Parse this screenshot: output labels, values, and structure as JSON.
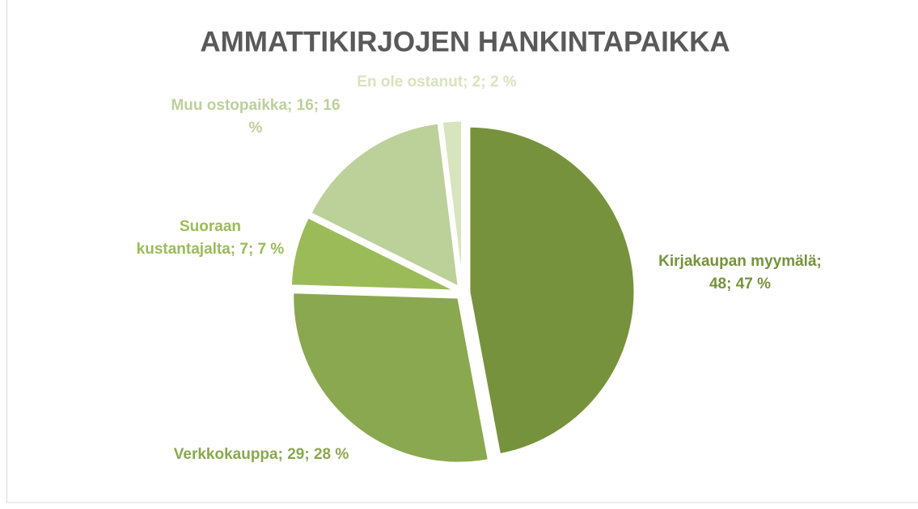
{
  "chart_data": {
    "type": "pie",
    "title": "AMMATTIKIRJOJEN HANKINTAPAIKKA",
    "values": [
      48,
      29,
      7,
      16,
      2
    ],
    "value_labels": [
      "Kirjakaupan myymälä; 48; 47 %",
      "Verkkokauppa; 29; 28 %",
      "Suoraan kustantajalta; 7; 7 %",
      "Muu ostopaikka; 16; 16 %",
      "En ole ostanut; 2; 2 %"
    ],
    "colors": [
      "#77923c",
      "#8aa84f",
      "#9bbb59",
      "#bcd09a",
      "#d7e4bd"
    ]
  }
}
